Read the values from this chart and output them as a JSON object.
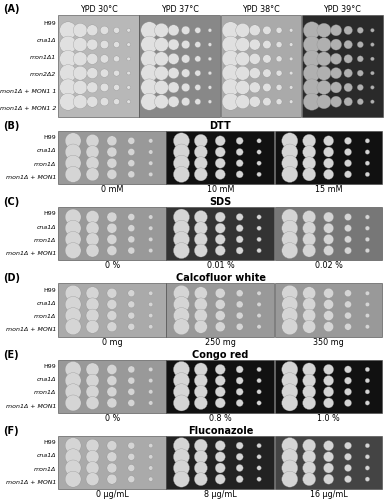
{
  "panel_A": {
    "label": "(A)",
    "title_cols": [
      "YPD 30°C",
      "YPD 37°C",
      "YPD 38°C",
      "YPD 39°C"
    ],
    "row_labels": [
      "H99",
      "cna1Δ",
      "mon1Δ1",
      "mon2Δ2",
      "mon1Δ + MON1 1",
      "mon1Δ + MON1 2"
    ],
    "row_italic": [
      false,
      true,
      true,
      true,
      true,
      true
    ],
    "bg_colors": [
      "#b8b8b8",
      "#888888",
      "#aaaaaa",
      "#2a2a2a"
    ],
    "n_spots": 6,
    "n_rows": 6
  },
  "panel_B": {
    "label": "(B)",
    "section_title": "DTT",
    "title_cols": [
      "0 mM",
      "10 mM",
      "15 mM"
    ],
    "row_labels": [
      "H99",
      "cna1Δ",
      "mon1Δ",
      "mon1Δ + MON1"
    ],
    "row_italic": [
      false,
      true,
      true,
      true
    ],
    "bg_colors": [
      "#999999",
      "#111111",
      "#111111"
    ]
  },
  "panel_C": {
    "label": "(C)",
    "section_title": "SDS",
    "title_cols": [
      "0 %",
      "0.01 %",
      "0.02 %"
    ],
    "row_labels": [
      "H99",
      "cna1Δ",
      "mon1Δ",
      "mon1Δ + MON1"
    ],
    "row_italic": [
      false,
      true,
      true,
      true
    ],
    "bg_colors": [
      "#999999",
      "#333333",
      "#777777"
    ]
  },
  "panel_D": {
    "label": "(D)",
    "section_title": "Calcofluor white",
    "title_cols": [
      "0 mg",
      "250 mg",
      "350 mg"
    ],
    "row_labels": [
      "H99",
      "cna1Δ",
      "mon1Δ",
      "mon1Δ + MON1"
    ],
    "row_italic": [
      false,
      true,
      true,
      true
    ],
    "bg_colors": [
      "#aaaaaa",
      "#999999",
      "#999999"
    ]
  },
  "panel_E": {
    "label": "(E)",
    "section_title": "Congo red",
    "title_cols": [
      "0 %",
      "0.8 %",
      "1.0 %"
    ],
    "row_labels": [
      "H99",
      "cna1Δ",
      "mon1Δ",
      "mon1Δ + MON1"
    ],
    "row_italic": [
      false,
      true,
      true,
      true
    ],
    "bg_colors": [
      "#999999",
      "#111111",
      "#111111"
    ]
  },
  "panel_F": {
    "label": "(F)",
    "section_title": "Fluconazole",
    "title_cols": [
      "0 μg/mL",
      "8 μg/mL",
      "16 μg/mL"
    ],
    "row_labels": [
      "H99",
      "cna1Δ",
      "mon1Δ",
      "mon1Δ + MON1"
    ],
    "row_italic": [
      false,
      true,
      true,
      true
    ],
    "bg_colors": [
      "#aaaaaa",
      "#222222",
      "#444444"
    ]
  }
}
